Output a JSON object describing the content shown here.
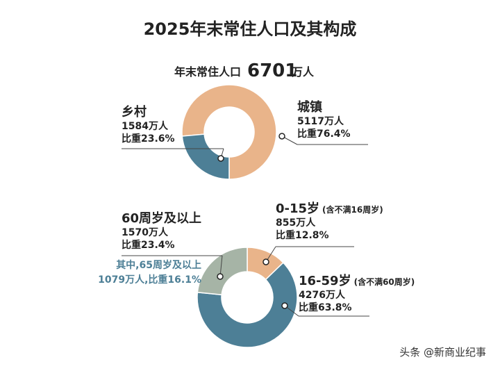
{
  "title": "2025年末常住人口及其构成",
  "headline": {
    "prefix": "年末常住人口",
    "number": "6701",
    "suffix": "万人"
  },
  "chart_data": [
    {
      "type": "pie",
      "categories": [
        "城镇",
        "乡村"
      ],
      "values": [
        76.4,
        23.6
      ],
      "value_labels": [
        "比重76.4%",
        "比重23.6%"
      ],
      "counts": [
        "5117万人",
        "1584万人"
      ],
      "colors": [
        "#e9b48a",
        "#4d7f96"
      ]
    },
    {
      "type": "pie",
      "categories": [
        "0-15岁",
        "16-59岁",
        "60周岁及以上"
      ],
      "values": [
        12.8,
        63.8,
        23.4
      ],
      "value_labels": [
        "比重12.8%",
        "比重63.8%",
        "比重23.4%"
      ],
      "counts": [
        "855万人",
        "4276万人",
        "1570万人"
      ],
      "category_notes": [
        "(含不满16周岁)",
        "(含不满60周岁)",
        null
      ],
      "colors": [
        "#e9b48a",
        "#4d7f96",
        "#a6b4a6"
      ],
      "annotation": [
        "其中,65周岁及以上",
        "1079万人,比重16.1%"
      ]
    }
  ],
  "watermark": "头条 @新商业纪事"
}
